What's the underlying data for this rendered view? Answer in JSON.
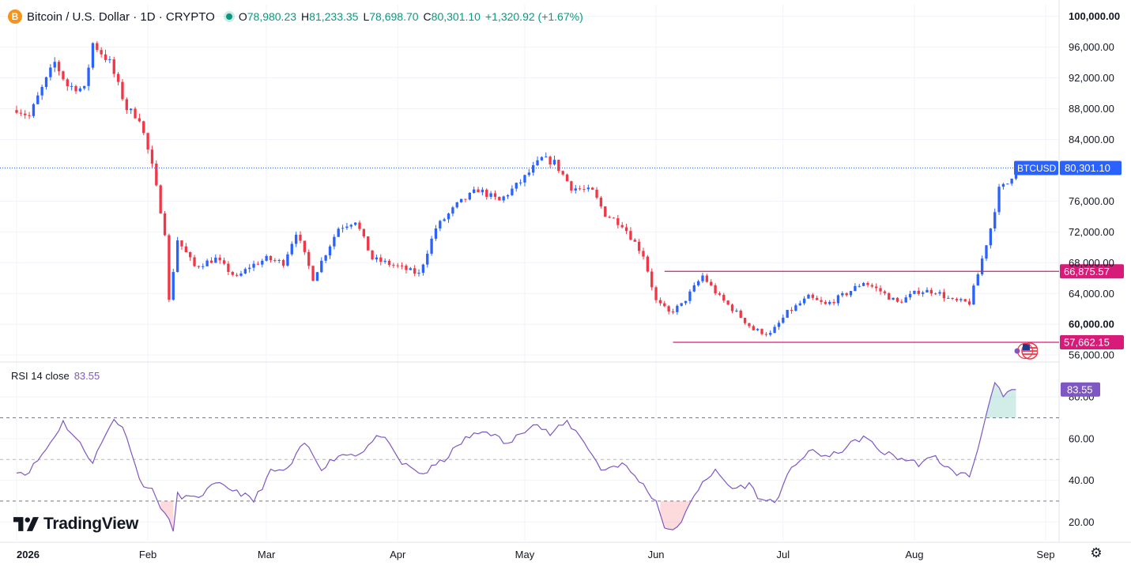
{
  "header": {
    "symbol_icon": "B",
    "title": "Bitcoin / U.S. Dollar · 1D · CRYPTO",
    "open_label": "O",
    "open": "78,980.23",
    "high_label": "H",
    "high": "81,233.35",
    "low_label": "L",
    "low": "78,698.70",
    "close_label": "C",
    "close": "80,301.10",
    "change": "+1,320.92 (+1.67%)"
  },
  "rsi_header": {
    "label": "RSI 14 close",
    "value": "83.55"
  },
  "branding": {
    "logo_text": "TradingView"
  },
  "icons": {
    "settings": "gear-icon",
    "flag": "us-flag-icon",
    "live": "live-dot-icon"
  },
  "colors": {
    "up": "#2962ff",
    "down": "#f23645",
    "rsi": "#7e57c2",
    "level_line": "#d81b79",
    "price_tag": "#2962ff"
  },
  "chart_data": [
    {
      "type": "candlestick",
      "title": "Bitcoin / U.S. Dollar · 1D · CRYPTO",
      "x_axis": {
        "ticks": [
          {
            "label": "2026",
            "date": "2026-01-01"
          },
          {
            "label": "Feb",
            "date": "2026-02-01"
          },
          {
            "label": "Mar",
            "date": "2026-03-01"
          },
          {
            "label": "Apr",
            "date": "2026-04-01"
          },
          {
            "label": "May",
            "date": "2026-05-01"
          },
          {
            "label": "Jun",
            "date": "2026-06-01"
          },
          {
            "label": "Jul",
            "date": "2026-07-01"
          },
          {
            "label": "Aug",
            "date": "2026-08-01"
          },
          {
            "label": "Sep",
            "date": "2026-09-01"
          }
        ]
      },
      "y_axis": {
        "ticks": [
          "100,000.00",
          "96,000.00",
          "92,000.00",
          "88,000.00",
          "84,000.00",
          "76,000.00",
          "72,000.00",
          "68,000.00",
          "64,000.00",
          "60,000.00",
          "56,000.00"
        ],
        "tick_values": [
          100000,
          96000,
          92000,
          88000,
          84000,
          76000,
          72000,
          68000,
          64000,
          60000,
          56000
        ],
        "ylim": [
          55300,
          101500
        ]
      },
      "anchors": [
        [
          "2026-01-01",
          88000
        ],
        [
          "2026-01-04",
          87000
        ],
        [
          "2026-01-06",
          89500
        ],
        [
          "2026-01-10",
          94000
        ],
        [
          "2026-01-13",
          91000
        ],
        [
          "2026-01-17",
          90500
        ],
        [
          "2026-01-19",
          96500
        ],
        [
          "2026-01-23",
          94000
        ],
        [
          "2026-01-27",
          88000
        ],
        [
          "2026-01-30",
          86800
        ],
        [
          "2026-02-02",
          80500
        ],
        [
          "2026-02-05",
          72000
        ],
        [
          "2026-02-06",
          63000
        ],
        [
          "2026-02-08",
          71000
        ],
        [
          "2026-02-12",
          67500
        ],
        [
          "2026-02-17",
          68500
        ],
        [
          "2026-02-22",
          66000
        ],
        [
          "2026-02-25",
          67500
        ],
        [
          "2026-03-01",
          68500
        ],
        [
          "2026-03-05",
          68000
        ],
        [
          "2026-03-08",
          72000
        ],
        [
          "2026-03-12",
          66000
        ],
        [
          "2026-03-18",
          72500
        ],
        [
          "2026-03-22",
          73500
        ],
        [
          "2026-03-26",
          68500
        ],
        [
          "2026-04-01",
          67500
        ],
        [
          "2026-04-06",
          66500
        ],
        [
          "2026-04-10",
          72500
        ],
        [
          "2026-04-15",
          75500
        ],
        [
          "2026-04-20",
          77500
        ],
        [
          "2026-04-25",
          76000
        ],
        [
          "2026-04-30",
          78500
        ],
        [
          "2026-05-05",
          81500
        ],
        [
          "2026-05-08",
          81000
        ],
        [
          "2026-05-12",
          77800
        ],
        [
          "2026-05-17",
          77200
        ],
        [
          "2026-05-20",
          74300
        ],
        [
          "2026-05-24",
          73000
        ],
        [
          "2026-05-29",
          69000
        ],
        [
          "2026-06-01",
          63000
        ],
        [
          "2026-06-04",
          61500
        ],
        [
          "2026-06-07",
          62500
        ],
        [
          "2026-06-12",
          66300
        ],
        [
          "2026-06-16",
          63500
        ],
        [
          "2026-06-20",
          61500
        ],
        [
          "2026-06-24",
          59300
        ],
        [
          "2026-06-28",
          58700
        ],
        [
          "2026-07-02",
          61500
        ],
        [
          "2026-07-07",
          63500
        ],
        [
          "2026-07-11",
          62500
        ],
        [
          "2026-07-16",
          64000
        ],
        [
          "2026-07-20",
          65500
        ],
        [
          "2026-07-24",
          64300
        ],
        [
          "2026-07-28",
          62800
        ],
        [
          "2026-08-02",
          64300
        ],
        [
          "2026-08-06",
          64300
        ],
        [
          "2026-08-10",
          63000
        ],
        [
          "2026-08-14",
          62800
        ],
        [
          "2026-08-16",
          66500
        ],
        [
          "2026-08-19",
          72500
        ],
        [
          "2026-08-21",
          77500
        ],
        [
          "2026-08-23",
          78300
        ],
        [
          "2026-08-25",
          80301.1
        ]
      ],
      "current_price": {
        "label": "BTCUSD",
        "value": "80,301.10",
        "y": 80301.1
      },
      "horizontal_levels": [
        {
          "value": 66875.57,
          "label": "66,875.57",
          "from": "2026-06-03"
        },
        {
          "value": 57662.15,
          "label": "57,662.15",
          "from": "2026-06-05"
        }
      ]
    },
    {
      "type": "line",
      "title": "RSI 14 close",
      "current_value": "83.55",
      "y_axis": {
        "ticks": [
          "80.00",
          "60.00",
          "40.00",
          "20.00"
        ],
        "tick_values": [
          80,
          60,
          40,
          20
        ],
        "ylim": [
          11,
          96
        ]
      },
      "bands": {
        "upper": 70,
        "middle": 50,
        "lower": 30
      },
      "series": [
        {
          "values_at_dates": [
            [
              "2026-01-01",
              45
            ],
            [
              "2026-01-03",
              43
            ],
            [
              "2026-01-05",
              47
            ],
            [
              "2026-01-08",
              55
            ],
            [
              "2026-01-12",
              68
            ],
            [
              "2026-01-15",
              60
            ],
            [
              "2026-01-19",
              49
            ],
            [
              "2026-01-24",
              70
            ],
            [
              "2026-01-27",
              62
            ],
            [
              "2026-01-30",
              40
            ],
            [
              "2026-02-02",
              35
            ],
            [
              "2026-02-05",
              24
            ],
            [
              "2026-02-07",
              16
            ],
            [
              "2026-02-08",
              33
            ],
            [
              "2026-02-12",
              31
            ],
            [
              "2026-02-17",
              38
            ],
            [
              "2026-02-22",
              35
            ],
            [
              "2026-02-26",
              30
            ],
            [
              "2026-03-02",
              44
            ],
            [
              "2026-03-06",
              45
            ],
            [
              "2026-03-10",
              58
            ],
            [
              "2026-03-14",
              46
            ],
            [
              "2026-03-18",
              52
            ],
            [
              "2026-03-23",
              53
            ],
            [
              "2026-03-28",
              62
            ],
            [
              "2026-04-02",
              48
            ],
            [
              "2026-04-07",
              43
            ],
            [
              "2026-04-12",
              50
            ],
            [
              "2026-04-17",
              60
            ],
            [
              "2026-04-22",
              64
            ],
            [
              "2026-04-27",
              57
            ],
            [
              "2026-05-03",
              68
            ],
            [
              "2026-05-07",
              62
            ],
            [
              "2026-05-11",
              68
            ],
            [
              "2026-05-15",
              59
            ],
            [
              "2026-05-19",
              45
            ],
            [
              "2026-05-24",
              48
            ],
            [
              "2026-05-28",
              40
            ],
            [
              "2026-06-01",
              30
            ],
            [
              "2026-06-03",
              18
            ],
            [
              "2026-06-05",
              15
            ],
            [
              "2026-06-08",
              24
            ],
            [
              "2026-06-12",
              40
            ],
            [
              "2026-06-15",
              44
            ],
            [
              "2026-06-19",
              36
            ],
            [
              "2026-06-23",
              38
            ],
            [
              "2026-06-26",
              30
            ],
            [
              "2026-06-30",
              31
            ],
            [
              "2026-07-03",
              47
            ],
            [
              "2026-07-08",
              54
            ],
            [
              "2026-07-12",
              51
            ],
            [
              "2026-07-16",
              56
            ],
            [
              "2026-07-20",
              61
            ],
            [
              "2026-07-24",
              54
            ],
            [
              "2026-07-28",
              51
            ],
            [
              "2026-08-02",
              48
            ],
            [
              "2026-08-06",
              51
            ],
            [
              "2026-08-10",
              44
            ],
            [
              "2026-08-14",
              42
            ],
            [
              "2026-08-16",
              55
            ],
            [
              "2026-08-18",
              73
            ],
            [
              "2026-08-20",
              86
            ],
            [
              "2026-08-22",
              80
            ],
            [
              "2026-08-25",
              83.55
            ]
          ]
        }
      ]
    }
  ]
}
